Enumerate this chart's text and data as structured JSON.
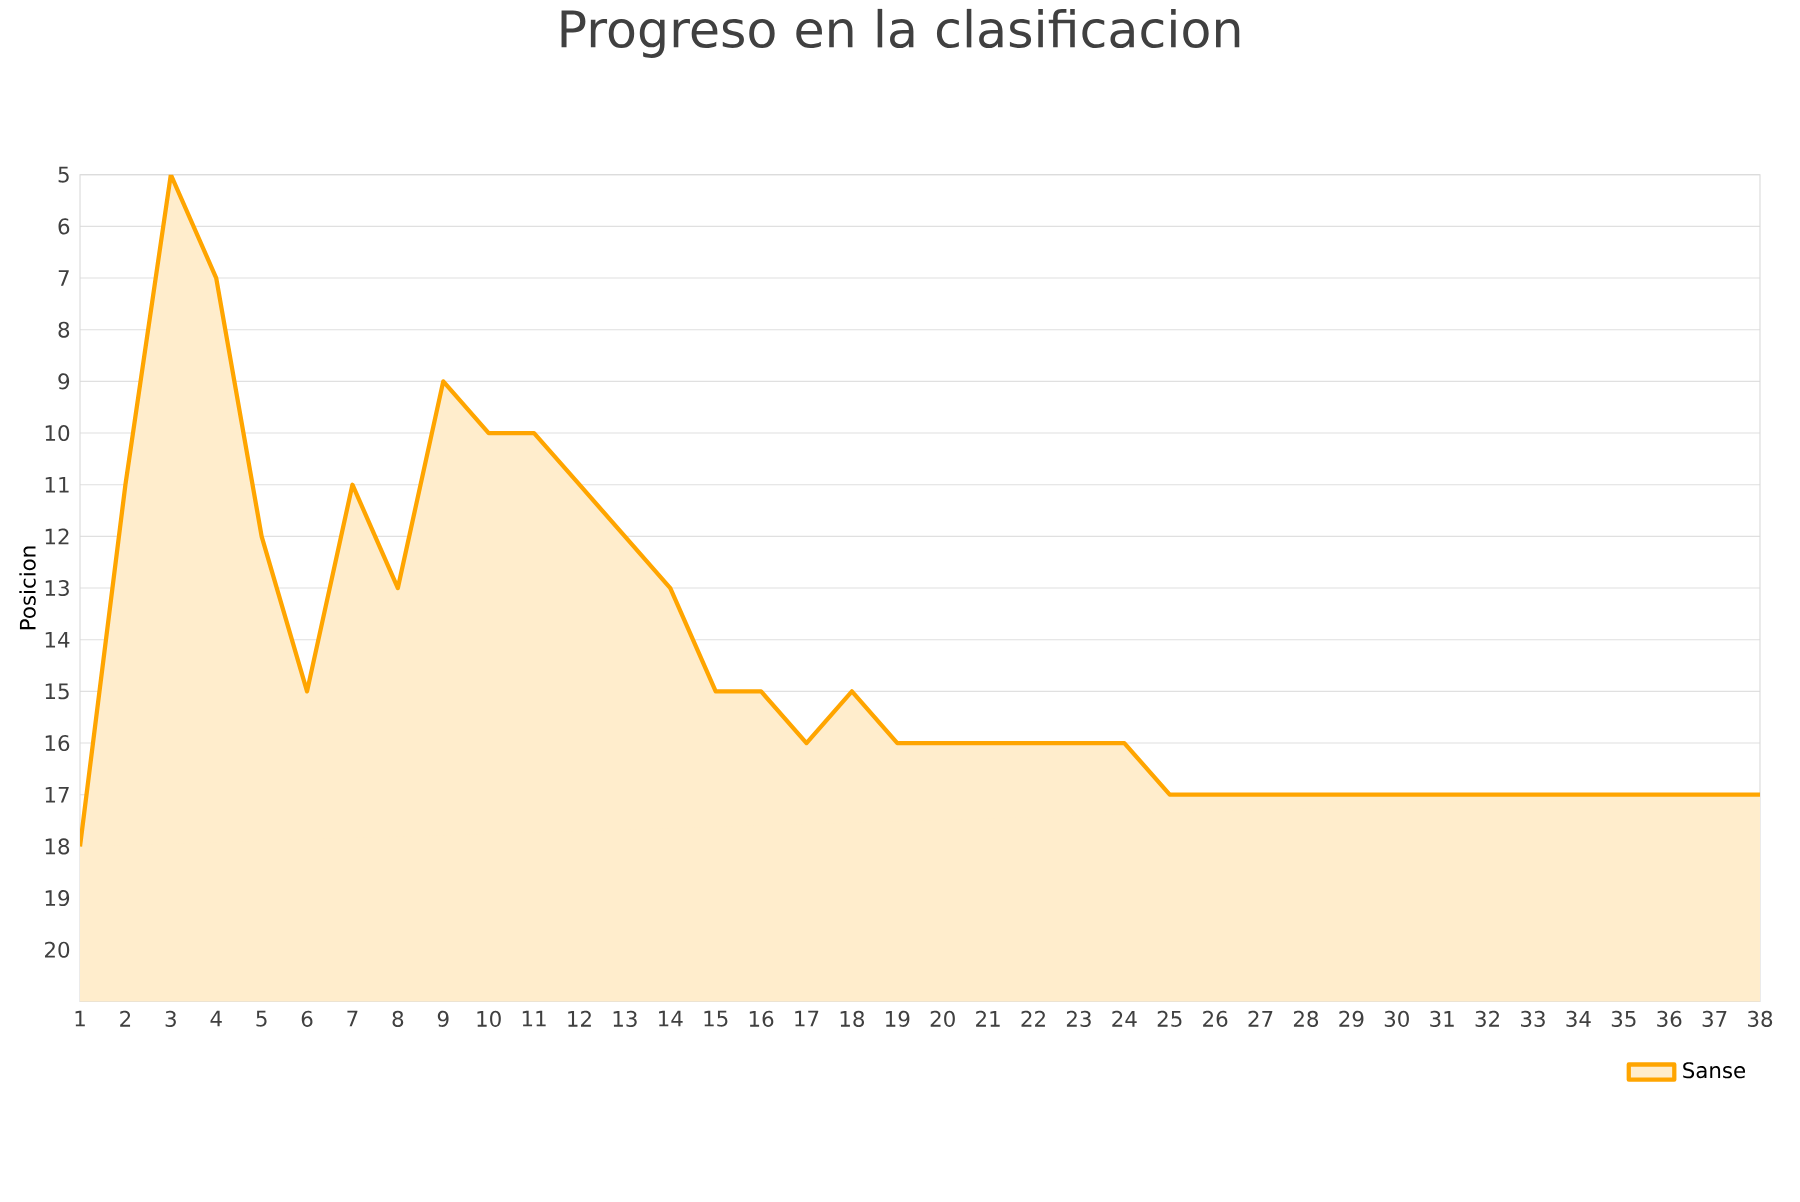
{
  "chart_data": {
    "type": "area",
    "title": "Progreso en la clasificacion",
    "ylabel": "Posicion",
    "x": [
      1,
      2,
      3,
      4,
      5,
      6,
      7,
      8,
      9,
      10,
      11,
      12,
      13,
      14,
      15,
      16,
      17,
      18,
      19,
      20,
      21,
      22,
      23,
      24,
      25,
      26,
      27,
      28,
      29,
      30,
      31,
      32,
      33,
      34,
      35,
      36,
      37,
      38
    ],
    "series": [
      {
        "name": "Sanse",
        "color": "#ffa500",
        "values": [
          18,
          11,
          5,
          7,
          12,
          15,
          11,
          13,
          9,
          10,
          10,
          11,
          12,
          13,
          15,
          15,
          16,
          15,
          16,
          16,
          16,
          16,
          16,
          16,
          17,
          17,
          17,
          17,
          17,
          17,
          17,
          17,
          17,
          17,
          17,
          17,
          17,
          17
        ]
      }
    ],
    "xlim": [
      1,
      38
    ],
    "xticks": [
      1,
      2,
      3,
      4,
      5,
      6,
      7,
      8,
      9,
      10,
      11,
      12,
      13,
      14,
      15,
      16,
      17,
      18,
      19,
      20,
      21,
      22,
      23,
      24,
      25,
      26,
      27,
      28,
      29,
      30,
      31,
      32,
      33,
      34,
      35,
      36,
      37,
      38
    ],
    "ylim": [
      21,
      5
    ],
    "yticks": [
      5,
      6,
      7,
      8,
      9,
      10,
      11,
      12,
      13,
      14,
      15,
      16,
      17,
      18,
      19,
      20
    ],
    "grid": "y",
    "legend": "bottom right",
    "marker": "none",
    "line_style": "solid"
  }
}
